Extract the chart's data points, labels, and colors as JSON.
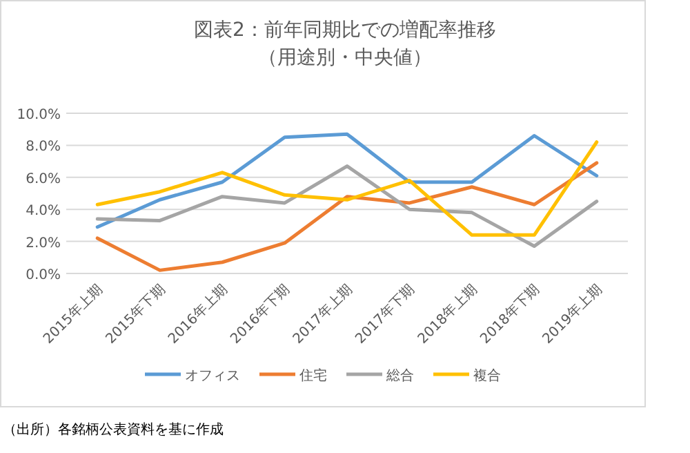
{
  "chart_data": {
    "type": "line",
    "title": "図表2：前年同期比での増配率推移",
    "subtitle": "（用途別・中央値）",
    "categories": [
      "2015年上期",
      "2015年下期",
      "2016年上期",
      "2016年下期",
      "2017年上期",
      "2017年下期",
      "2018年上期",
      "2018年下期",
      "2019年上期"
    ],
    "series": [
      {
        "name": "オフィス",
        "color": "#5b9bd5",
        "values": [
          2.9,
          4.6,
          5.7,
          8.5,
          8.7,
          5.7,
          5.7,
          8.6,
          6.1
        ]
      },
      {
        "name": "住宅",
        "color": "#ed7d31",
        "values": [
          2.2,
          0.2,
          0.7,
          1.9,
          4.8,
          4.4,
          5.4,
          4.3,
          6.9
        ]
      },
      {
        "name": "総合",
        "color": "#a5a5a5",
        "values": [
          3.4,
          3.3,
          4.8,
          4.4,
          6.7,
          4.0,
          3.8,
          1.7,
          4.5
        ]
      },
      {
        "name": "複合",
        "color": "#ffc000",
        "values": [
          4.3,
          5.1,
          6.3,
          4.9,
          4.6,
          5.8,
          2.4,
          2.4,
          8.2
        ]
      }
    ],
    "ylim": [
      0,
      10
    ],
    "yticks": [
      {
        "value": 0,
        "label": "0.0%"
      },
      {
        "value": 2,
        "label": "2.0%"
      },
      {
        "value": 4,
        "label": "4.0%"
      },
      {
        "value": 6,
        "label": "6.0%"
      },
      {
        "value": 8,
        "label": "8.0%"
      },
      {
        "value": 10,
        "label": "10.0%"
      }
    ],
    "grid": "y",
    "legend": "bottom",
    "marker": "none",
    "line_style": "solid",
    "annotations": [
      "（出所）各銘柄公表資料を基に作成"
    ]
  }
}
